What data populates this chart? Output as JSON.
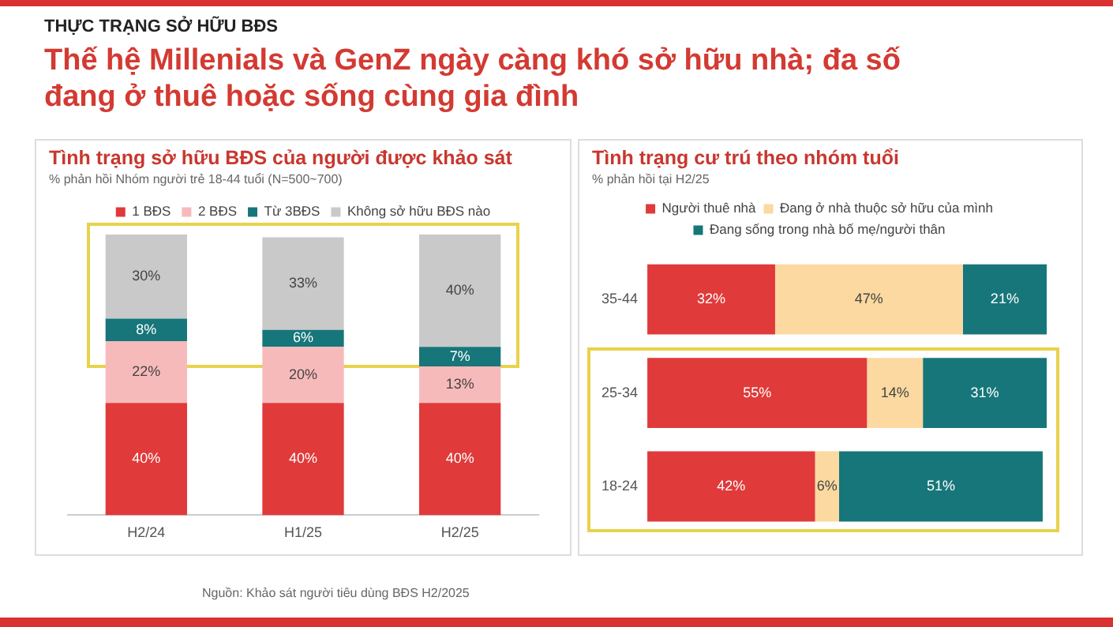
{
  "chart_data": [
    {
      "type": "bar",
      "stacked": true,
      "title": "Tình trạng sở hữu BĐS của người được khảo sát",
      "subtitle": "% phản hồi Nhóm người trẻ 18-44 tuổi (N=500~700)",
      "annotations": [
        "THỰC TRẠNG SỞ HỮU BĐS",
        "Thế hệ Millenials và GenZ ngày càng khó sở hữu nhà; đa số đang ở thuê hoặc sống cùng gia đình",
        "Nguồn: Khảo sát người tiêu dùng BĐS H2/2025"
      ],
      "categories": [
        "H2/24",
        "H1/25",
        "H2/25"
      ],
      "series": [
        {
          "name": "1 BĐS",
          "color": "#e03a3a",
          "values": [
            40,
            40,
            40
          ],
          "value_labels": [
            "40%",
            "40%",
            "40%"
          ]
        },
        {
          "name": "2 BĐS",
          "color": "#f7baba",
          "values": [
            22,
            20,
            13
          ],
          "value_labels": [
            "22%",
            "20%",
            "13%"
          ]
        },
        {
          "name": "Từ 3BĐS",
          "color": "#17767a",
          "values": [
            8,
            6,
            7
          ],
          "value_labels": [
            "8%",
            "6%",
            "7%"
          ]
        },
        {
          "name": "Không sở hữu BĐS nào",
          "color": "#c9c9c9",
          "values": [
            30,
            33,
            40
          ],
          "value_labels": [
            "30%",
            "33%",
            "40%"
          ]
        }
      ],
      "legend": "top",
      "grid": false,
      "tick_labels": "x"
    },
    {
      "type": "bar",
      "stacked": true,
      "orientation": "horizontal",
      "title": "Tình trạng cư trú theo nhóm tuổi",
      "subtitle": "% phản hồi tại H2/25",
      "categories": [
        "35-44",
        "25-34",
        "18-24"
      ],
      "series": [
        {
          "name": "Người thuê nhà",
          "color": "#e03a3a",
          "values": [
            32,
            55,
            42
          ],
          "value_labels": [
            "32%",
            "55%",
            "42%"
          ]
        },
        {
          "name": "Đang ở nhà thuộc sở hữu của mình",
          "color": "#fbd9a0",
          "values": [
            47,
            14,
            6
          ],
          "value_labels": [
            "47%",
            "14%",
            "6%"
          ]
        },
        {
          "name": "Đang sống trong nhà bố mẹ/người thân",
          "color": "#17767a",
          "values": [
            21,
            31,
            51
          ],
          "value_labels": [
            "21%",
            "31%",
            "51%"
          ]
        }
      ],
      "legend": "top",
      "grid": false,
      "tick_labels": "y"
    }
  ]
}
